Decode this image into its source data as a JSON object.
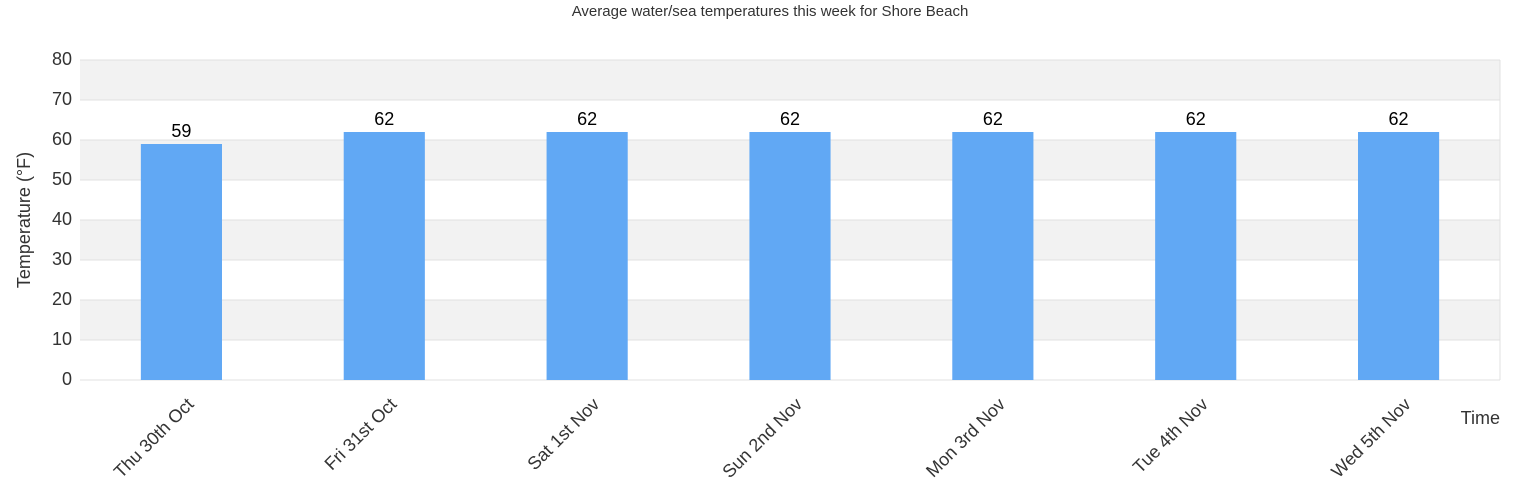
{
  "chart_data": {
    "type": "bar",
    "title": "Average water/sea temperatures this week for Shore Beach",
    "y_label": "Temperature (°F)",
    "x_label": "Time",
    "categories": [
      "Thu 30th Oct",
      "Fri 31st Oct",
      "Sat 1st Nov",
      "Sun 2nd Nov",
      "Mon 3rd Nov",
      "Tue 4th Nov",
      "Wed 5th Nov"
    ],
    "values": [
      59,
      62,
      62,
      62,
      62,
      62,
      62
    ],
    "color": "#61a8f4",
    "ylim": [
      0,
      80
    ],
    "yticks": [
      0,
      10,
      20,
      30,
      40,
      50,
      60,
      70,
      80
    ],
    "grid": true
  }
}
